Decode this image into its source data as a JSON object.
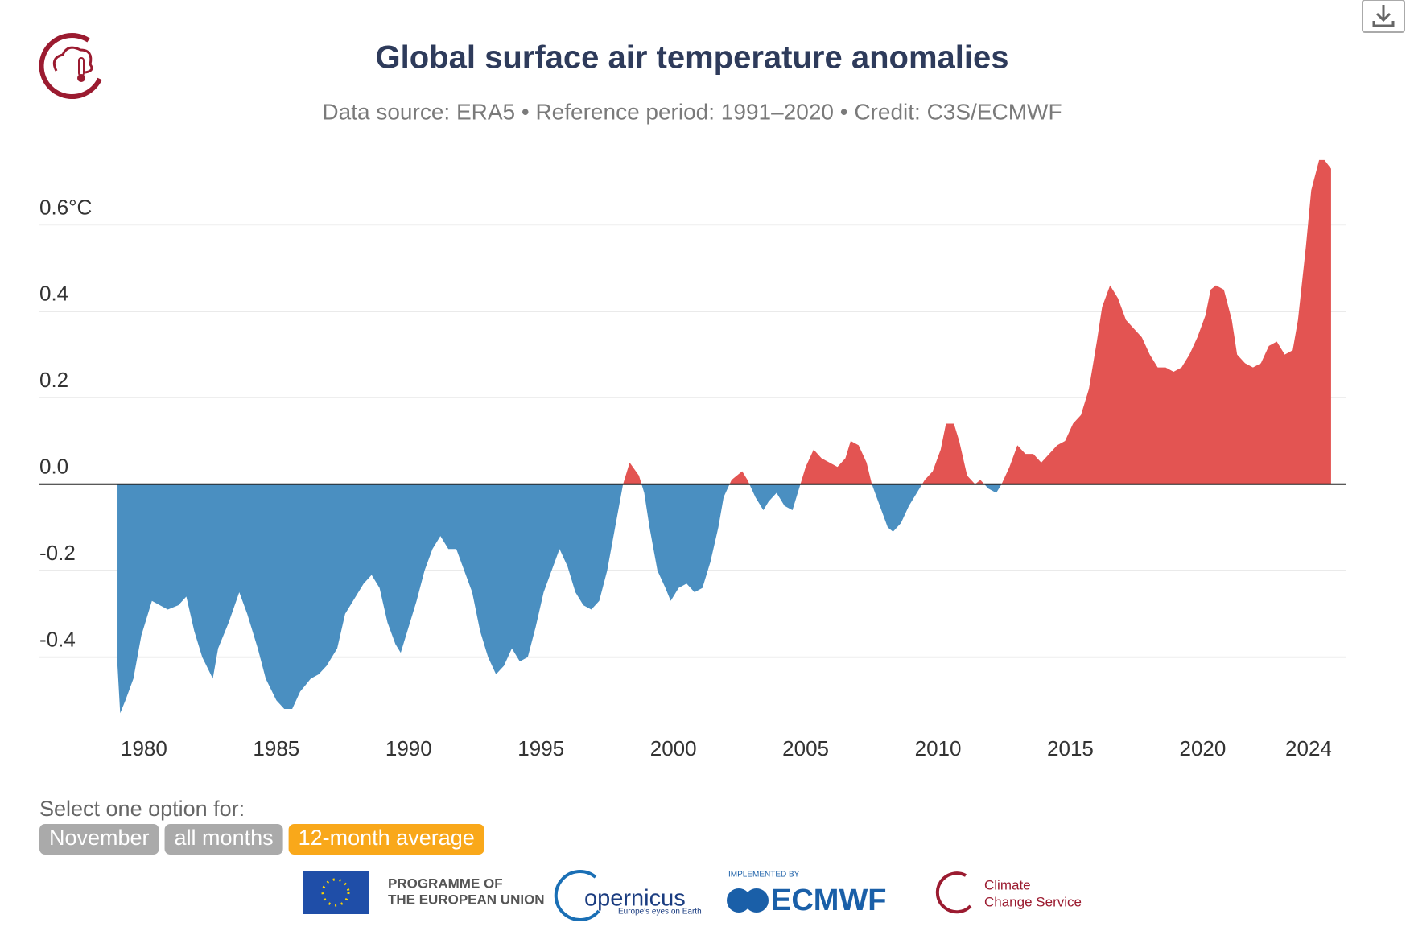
{
  "chart_data": {
    "type": "area",
    "title": "Global surface air temperature anomalies",
    "subtitle": "Data source: ERA5 • Reference period: 1991–2020 • Credit: C3S/ECMWF",
    "x": [
      1979.0,
      1979.1,
      1979.3,
      1979.6,
      1979.9,
      1980.3,
      1980.6,
      1980.9,
      1981.3,
      1981.6,
      1981.9,
      1982.2,
      1982.6,
      1982.8,
      1983.2,
      1983.6,
      1983.9,
      1984.3,
      1984.6,
      1985.0,
      1985.3,
      1985.6,
      1985.9,
      1986.3,
      1986.6,
      1986.9,
      1987.3,
      1987.6,
      1987.9,
      1988.3,
      1988.6,
      1988.9,
      1989.2,
      1989.5,
      1989.7,
      1989.9,
      1990.3,
      1990.6,
      1990.9,
      1991.2,
      1991.5,
      1991.8,
      1992.1,
      1992.4,
      1992.7,
      1993.0,
      1993.3,
      1993.6,
      1993.9,
      1994.2,
      1994.5,
      1994.8,
      1995.1,
      1995.4,
      1995.7,
      1996.0,
      1996.3,
      1996.6,
      1996.9,
      1997.2,
      1997.5,
      1997.8,
      1998.1,
      1998.35,
      1998.7,
      1998.9,
      1999.1,
      1999.4,
      1999.7,
      1999.9,
      2000.2,
      2000.5,
      2000.8,
      2001.1,
      2001.4,
      2001.7,
      2001.9,
      2002.2,
      2002.6,
      2002.8,
      2003.1,
      2003.4,
      2003.6,
      2003.9,
      2004.2,
      2004.5,
      2004.7,
      2005.0,
      2005.3,
      2005.6,
      2005.9,
      2006.2,
      2006.5,
      2006.7,
      2007.0,
      2007.3,
      2007.5,
      2007.8,
      2008.1,
      2008.3,
      2008.6,
      2008.9,
      2009.2,
      2009.5,
      2009.8,
      2010.1,
      2010.3,
      2010.6,
      2010.8,
      2011.1,
      2011.4,
      2011.6,
      2011.9,
      2012.2,
      2012.4,
      2012.7,
      2013.0,
      2013.3,
      2013.6,
      2013.9,
      2014.2,
      2014.5,
      2014.8,
      2015.1,
      2015.4,
      2015.7,
      2016.0,
      2016.2,
      2016.5,
      2016.8,
      2017.1,
      2017.4,
      2017.7,
      2018.0,
      2018.3,
      2018.6,
      2018.9,
      2019.2,
      2019.5,
      2019.8,
      2020.1,
      2020.3,
      2020.5,
      2020.8,
      2021.1,
      2021.3,
      2021.6,
      2021.9,
      2022.2,
      2022.5,
      2022.8,
      2023.1,
      2023.4,
      2023.6,
      2023.9,
      2024.1,
      2024.4,
      2024.6,
      2024.85
    ],
    "values": [
      -0.42,
      -0.53,
      -0.5,
      -0.45,
      -0.35,
      -0.27,
      -0.28,
      -0.29,
      -0.28,
      -0.26,
      -0.34,
      -0.4,
      -0.45,
      -0.38,
      -0.32,
      -0.25,
      -0.3,
      -0.38,
      -0.45,
      -0.5,
      -0.52,
      -0.52,
      -0.48,
      -0.45,
      -0.44,
      -0.42,
      -0.38,
      -0.3,
      -0.27,
      -0.23,
      -0.21,
      -0.24,
      -0.32,
      -0.37,
      -0.39,
      -0.35,
      -0.27,
      -0.2,
      -0.15,
      -0.12,
      -0.15,
      -0.15,
      -0.2,
      -0.25,
      -0.34,
      -0.4,
      -0.44,
      -0.42,
      -0.38,
      -0.41,
      -0.4,
      -0.33,
      -0.25,
      -0.2,
      -0.15,
      -0.19,
      -0.25,
      -0.28,
      -0.29,
      -0.27,
      -0.2,
      -0.1,
      0.0,
      0.05,
      0.02,
      -0.02,
      -0.1,
      -0.2,
      -0.24,
      -0.27,
      -0.24,
      -0.23,
      -0.25,
      -0.24,
      -0.18,
      -0.1,
      -0.03,
      0.01,
      0.03,
      0.01,
      -0.03,
      -0.06,
      -0.04,
      -0.02,
      -0.05,
      -0.06,
      -0.02,
      0.04,
      0.08,
      0.06,
      0.05,
      0.04,
      0.06,
      0.1,
      0.09,
      0.05,
      0.0,
      -0.05,
      -0.1,
      -0.11,
      -0.09,
      -0.05,
      -0.02,
      0.01,
      0.03,
      0.08,
      0.14,
      0.14,
      0.1,
      0.02,
      0.0,
      0.01,
      -0.01,
      -0.02,
      0.0,
      0.04,
      0.09,
      0.07,
      0.07,
      0.05,
      0.07,
      0.09,
      0.1,
      0.14,
      0.16,
      0.22,
      0.33,
      0.41,
      0.46,
      0.43,
      0.38,
      0.36,
      0.34,
      0.3,
      0.27,
      0.27,
      0.26,
      0.27,
      0.3,
      0.34,
      0.39,
      0.45,
      0.46,
      0.45,
      0.38,
      0.3,
      0.28,
      0.27,
      0.28,
      0.32,
      0.33,
      0.3,
      0.31,
      0.38,
      0.55,
      0.68,
      0.75,
      0.75,
      0.73
    ],
    "positive_color": "#e35452",
    "negative_color": "#4a8fc1",
    "xlim": [
      1976.05,
      2025.43
    ],
    "xticks": [
      1980,
      1985,
      1990,
      1995,
      2000,
      2005,
      2010,
      2015,
      2020,
      2024
    ],
    "ylim": [
      -0.6,
      0.8
    ],
    "yticks": [
      {
        "value": -0.4,
        "label": "-0.4"
      },
      {
        "value": -0.2,
        "label": "-0.2"
      },
      {
        "value": 0,
        "label": "0.0"
      },
      0.2,
      0.4,
      {
        "value": 0.6,
        "label": "0.6°C"
      }
    ],
    "grid": true
  },
  "controls": {
    "prompt": "Select one option for:",
    "options": [
      "November",
      "all months",
      "12-month average"
    ],
    "selected": 2
  },
  "footer": {
    "eu": [
      "PROGRAMME OF",
      "THE EUROPEAN UNION"
    ],
    "copernicus": "opernicus",
    "copernicus_tagline": "Europe's eyes on Earth",
    "implemented": "IMPLEMENTED BY",
    "ecmwf": "ECMWF",
    "c3s": [
      "Climate",
      "Change Service"
    ]
  }
}
